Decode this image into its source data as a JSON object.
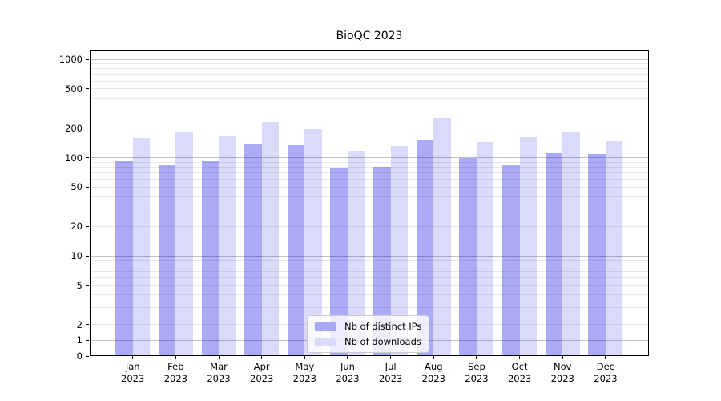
{
  "title": "BioQC 2023",
  "chart_data": {
    "type": "bar",
    "title": "BioQC 2023",
    "categories": [
      "Jan 2023",
      "Feb 2023",
      "Mar 2023",
      "Apr 2023",
      "May 2023",
      "Jun 2023",
      "Jul 2023",
      "Aug 2023",
      "Sep 2023",
      "Oct 2023",
      "Nov 2023",
      "Dec 2023"
    ],
    "series": [
      {
        "name": "Nb of distinct IPs",
        "values": [
          92,
          84,
          92,
          139,
          135,
          79,
          80,
          153,
          100,
          83,
          110,
          108
        ],
        "fill": "rgba(5,5,229,0.34)",
        "hex_on_white": "#a9a9f6"
      },
      {
        "name": "Nb of downloads",
        "values": [
          159,
          181,
          166,
          231,
          195,
          117,
          132,
          255,
          145,
          162,
          185,
          147
        ],
        "fill": "rgba(8,8,222,0.15)",
        "hex_on_white": "#dadaf9"
      }
    ],
    "yscale": "symlog",
    "linthresh": 2,
    "y_ticks": [
      0,
      1,
      2,
      5,
      10,
      20,
      50,
      100,
      200,
      500,
      1000
    ],
    "y_tick_labels": [
      "0",
      "1",
      "2",
      "5",
      "10",
      "20",
      "50",
      "100",
      "200",
      "500",
      "1000"
    ],
    "ylim": [
      0,
      1253
    ],
    "xlabel": "",
    "ylabel": "",
    "grid": "both",
    "legend_position": "inside-bottom-center"
  },
  "colors": {
    "background": "#ffffff",
    "axis": "#000000",
    "text": "#000000",
    "grid_major": "#c3c3c3",
    "grid_minor": "#e9e9e9",
    "legend_border": "#cccccc",
    "legend_bg": "rgba(255,255,255,0.8)"
  }
}
